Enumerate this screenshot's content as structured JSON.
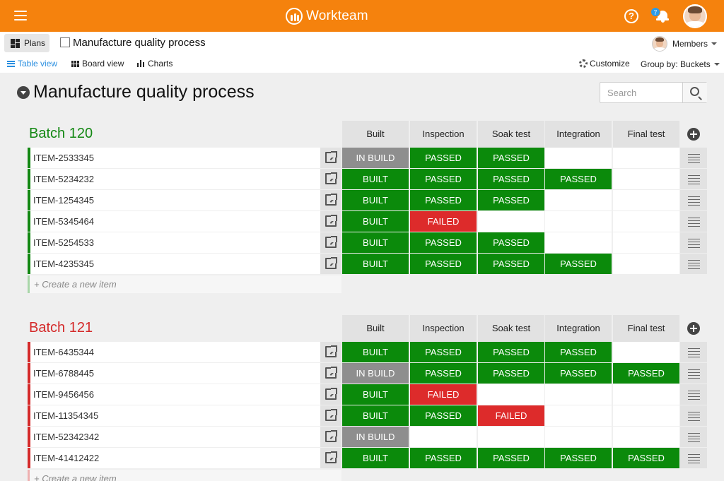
{
  "app": {
    "name": "Workteam",
    "notification_count": "7"
  },
  "header": {
    "plans_label": "Plans",
    "plan_name": "Manufacture quality process",
    "members_label": "Members",
    "views": [
      {
        "label": "Table view",
        "active": true
      },
      {
        "label": "Board view",
        "active": false
      },
      {
        "label": "Charts",
        "active": false
      }
    ],
    "customize_label": "Customize",
    "group_by_label": "Group by: Buckets"
  },
  "page": {
    "title": "Manufacture quality process",
    "search_placeholder": "Search"
  },
  "colors": {
    "accent": "#f5820d",
    "link": "#2b8fe0",
    "passed": "#0b8a0b",
    "failed": "#dd2b2b",
    "in_build": "#8e8e8e",
    "batch_green": "#138813",
    "batch_red": "#d42a2a"
  },
  "columns": [
    "Built",
    "Inspection",
    "Soak test",
    "Integration",
    "Final test"
  ],
  "batches": [
    {
      "name": "Batch 120",
      "color": "#138813",
      "create_label": "+ Create a new item",
      "items": [
        {
          "id": "ITEM-2533345",
          "statuses": [
            "IN BUILD",
            "PASSED",
            "PASSED",
            "",
            ""
          ]
        },
        {
          "id": "ITEM-5234232",
          "statuses": [
            "BUILT",
            "PASSED",
            "PASSED",
            "PASSED",
            ""
          ]
        },
        {
          "id": "ITEM-1254345",
          "statuses": [
            "BUILT",
            "PASSED",
            "PASSED",
            "",
            ""
          ]
        },
        {
          "id": "ITEM-5345464",
          "statuses": [
            "BUILT",
            "FAILED",
            "",
            "",
            ""
          ]
        },
        {
          "id": "ITEM-5254533",
          "statuses": [
            "BUILT",
            "PASSED",
            "PASSED",
            "",
            ""
          ]
        },
        {
          "id": "ITEM-4235345",
          "statuses": [
            "BUILT",
            "PASSED",
            "PASSED",
            "PASSED",
            ""
          ]
        }
      ]
    },
    {
      "name": "Batch 121",
      "color": "#d42a2a",
      "create_label": "+ Create a new item",
      "items": [
        {
          "id": "ITEM-6435344",
          "statuses": [
            "BUILT",
            "PASSED",
            "PASSED",
            "PASSED",
            ""
          ]
        },
        {
          "id": "ITEM-6788445",
          "statuses": [
            "IN BUILD",
            "PASSED",
            "PASSED",
            "PASSED",
            "PASSED"
          ]
        },
        {
          "id": "ITEM-9456456",
          "statuses": [
            "BUILT",
            "FAILED",
            "",
            "",
            ""
          ]
        },
        {
          "id": "ITEM-11354345",
          "statuses": [
            "BUILT",
            "PASSED",
            "FAILED",
            "",
            ""
          ]
        },
        {
          "id": "ITEM-52342342",
          "statuses": [
            "IN BUILD",
            "",
            "",
            "",
            ""
          ]
        },
        {
          "id": "ITEM-41412422",
          "statuses": [
            "BUILT",
            "PASSED",
            "PASSED",
            "PASSED",
            "PASSED"
          ]
        }
      ]
    }
  ]
}
